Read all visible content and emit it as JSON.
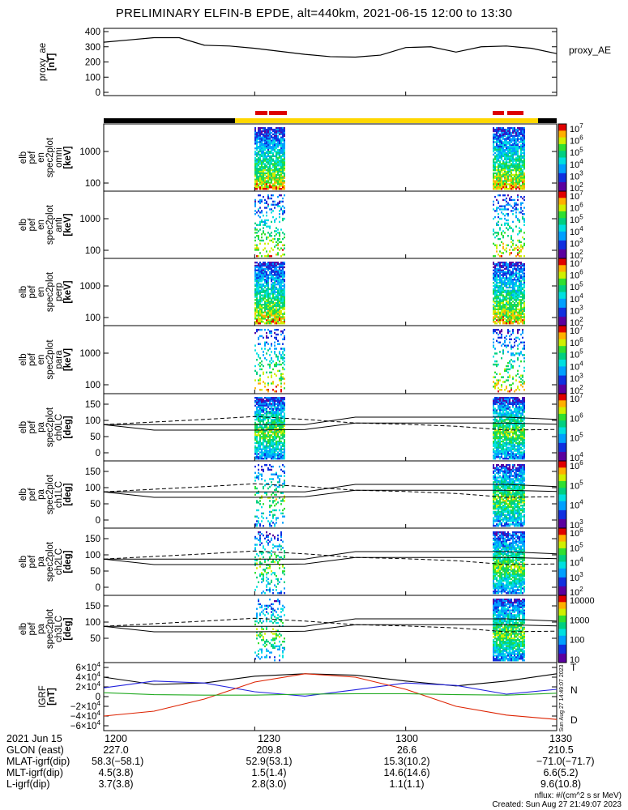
{
  "title": "PRELIMINARY ELFIN-B EPDE, alt=440km, 2021-06-15 12:00 to 13:30",
  "panels": [
    {
      "ylabel": [
        "proxy_ae",
        "[nT]"
      ],
      "yticks": [
        "400",
        "300",
        "200",
        "100",
        "0"
      ],
      "legend": "proxy_AE"
    },
    {
      "ylabel": [
        "elb",
        "pef",
        "en",
        "spec2plot",
        "omni",
        "[keV]"
      ],
      "yticks": [
        "1000",
        "100"
      ],
      "cb_ticks": [
        "10^7",
        "10^6",
        "10^5",
        "10^4",
        "10^3",
        "10^2"
      ],
      "cb_label": "nflux"
    },
    {
      "ylabel": [
        "elb",
        "pef",
        "en",
        "spec2plot",
        "anti",
        "[keV]"
      ],
      "yticks": [
        "1000",
        "100"
      ],
      "cb_ticks": [
        "10^7",
        "10^6",
        "10^5",
        "10^4",
        "10^3",
        "10^2"
      ],
      "cb_label": "nflux"
    },
    {
      "ylabel": [
        "elb",
        "pef",
        "en",
        "spec2plot",
        "perp",
        "[keV]"
      ],
      "yticks": [
        "1000",
        "100"
      ],
      "cb_ticks": [
        "10^7",
        "10^6",
        "10^5",
        "10^4",
        "10^3",
        "10^2"
      ],
      "cb_label": "nflux"
    },
    {
      "ylabel": [
        "elb",
        "pef",
        "en",
        "spec2plot",
        "para",
        "[keV]"
      ],
      "yticks": [
        "1000",
        "100"
      ],
      "cb_ticks": [
        "10^7",
        "10^6",
        "10^5",
        "10^4",
        "10^3",
        "10^2"
      ],
      "cb_label": "nflux"
    },
    {
      "ylabel": [
        "elb",
        "pef",
        "pa",
        "spec2plot",
        "ch0LC",
        "[deg]"
      ],
      "yticks": [
        "150",
        "100",
        "50",
        "0"
      ],
      "cb_ticks": [
        "10^7",
        "10^6",
        "10^5",
        "10^4"
      ],
      "cb_label": "nflux"
    },
    {
      "ylabel": [
        "elb",
        "pef",
        "pa",
        "spec2plot",
        "ch1LC",
        "[deg]"
      ],
      "yticks": [
        "150",
        "100",
        "50",
        "0"
      ],
      "cb_ticks": [
        "10^6",
        "10^5",
        "10^4",
        "10^3"
      ],
      "cb_label": "nflux"
    },
    {
      "ylabel": [
        "elb",
        "pef",
        "pa",
        "spec2plot",
        "ch2LC",
        "[deg]"
      ],
      "yticks": [
        "150",
        "100",
        "50",
        "0"
      ],
      "cb_ticks": [
        "10^6",
        "10^5",
        "10^4",
        "10^3",
        "10^2"
      ],
      "cb_label": "nflux"
    },
    {
      "ylabel": [
        "elb",
        "pef",
        "pa",
        "spec2plot",
        "ch3LC",
        "[deg]"
      ],
      "yticks": [
        "150",
        "100",
        "50"
      ],
      "cb_ticks": [
        "10000",
        "1000",
        "100",
        "10"
      ],
      "cb_label": "nflux"
    },
    {
      "ylabel": [
        "IGRF",
        "[nT]"
      ],
      "yticks": [
        "6×10^4",
        "4×10^4",
        "2×10^4",
        "0",
        "−2×10^4",
        "−4×10^4",
        "−6×10^4"
      ],
      "legend_N": "N",
      "legend_D": "D",
      "legend_T": "T"
    }
  ],
  "xaxis": {
    "ticks": [
      "1200",
      "1230",
      "1300",
      "1330"
    ]
  },
  "footer": {
    "rows": [
      {
        "label": "2021 Jun 15",
        "values": [
          "1200",
          "1230",
          "1300",
          "1330"
        ]
      },
      {
        "label": "GLON (east)",
        "values": [
          "227.0",
          "209.8",
          "26.6",
          "210.5"
        ]
      },
      {
        "label": "MLAT-igrf(dip)",
        "values": "58.3(−58.1)",
        "vals": [
          "58.3(−58.1)",
          "52.9(53.1)",
          "15.3(10.2)",
          "−71.0(−71.7)"
        ]
      },
      {
        "label": "MLT-igrf(dip)",
        "values": [
          "4.5(3.8)",
          "1.5(1.4)",
          "14.6(14.6)",
          "6.6(5.2)"
        ]
      },
      {
        "label": "L-igrf(dip)",
        "values": [
          "3.7(3.8)",
          "2.8(3.0)",
          "1.1(1.1)",
          "9.6(10.8)"
        ]
      }
    ],
    "nflux_units": "nflux: #/(cm^2 s sr MeV)",
    "created": "Created: Sun Aug 27 21:49:07 2023",
    "side_stamp": "Sun Aug 27 14:49:07 2023"
  },
  "chart_data": [
    {
      "type": "line",
      "title": "PRELIMINARY ELFIN-B EPDE, alt=440km, 2021-06-15 12:00 to 13:30",
      "ylabel": "proxy_ae [nT]",
      "ylim": [
        0,
        400
      ],
      "x": [
        "12:00",
        "12:05",
        "12:10",
        "12:15",
        "12:20",
        "12:25",
        "12:30",
        "12:35",
        "12:40",
        "12:45",
        "12:50",
        "12:55",
        "13:00",
        "13:05",
        "13:10",
        "13:15",
        "13:20",
        "13:25",
        "13:30"
      ],
      "series": [
        {
          "name": "proxy_AE",
          "values": [
            330,
            345,
            360,
            360,
            310,
            305,
            290,
            270,
            250,
            235,
            232,
            245,
            295,
            300,
            265,
            300,
            305,
            290,
            255
          ]
        }
      ]
    },
    {
      "type": "heatmap",
      "ylabel": "elb pef en spec2plot omni [keV]",
      "yscale": "log",
      "ylim": [
        60,
        7000
      ],
      "colorbar": {
        "label": "nflux",
        "range": [
          100,
          10000000
        ]
      },
      "nonzero_intervals": [
        "12:30-12:33",
        "13:18-13:23"
      ]
    },
    {
      "type": "line",
      "ylabel": "IGRF [nT]",
      "ylim": [
        -60000,
        60000
      ],
      "x": [
        "12:00",
        "12:10",
        "12:20",
        "12:30",
        "12:40",
        "12:50",
        "13:00",
        "13:10",
        "13:20",
        "13:30"
      ],
      "series": [
        {
          "name": "T",
          "values": [
            40000,
            25000,
            28000,
            42000,
            47000,
            44000,
            32000,
            22000,
            32000,
            47000
          ]
        },
        {
          "name": "N",
          "values": [
            18000,
            32000,
            28000,
            10000,
            1000,
            14000,
            28000,
            23000,
            5000,
            15000
          ]
        },
        {
          "name": "D",
          "values": [
            -40000,
            -30000,
            -5000,
            30000,
            47000,
            40000,
            15000,
            -20000,
            -38000,
            -47000
          ]
        },
        {
          "name": "",
          "values": [
            8000,
            4000,
            3000,
            3000,
            5000,
            6000,
            6000,
            4000,
            3000,
            7000
          ]
        }
      ]
    }
  ],
  "colors": {
    "ae_line": "#000000",
    "orbit_black": "#000000",
    "orbit_yellow": "#ffd700",
    "marker_red": "#dd0000",
    "N": "#2222dd",
    "D": "#dd2200",
    "T": "#000000",
    "green": "#22aa22"
  }
}
